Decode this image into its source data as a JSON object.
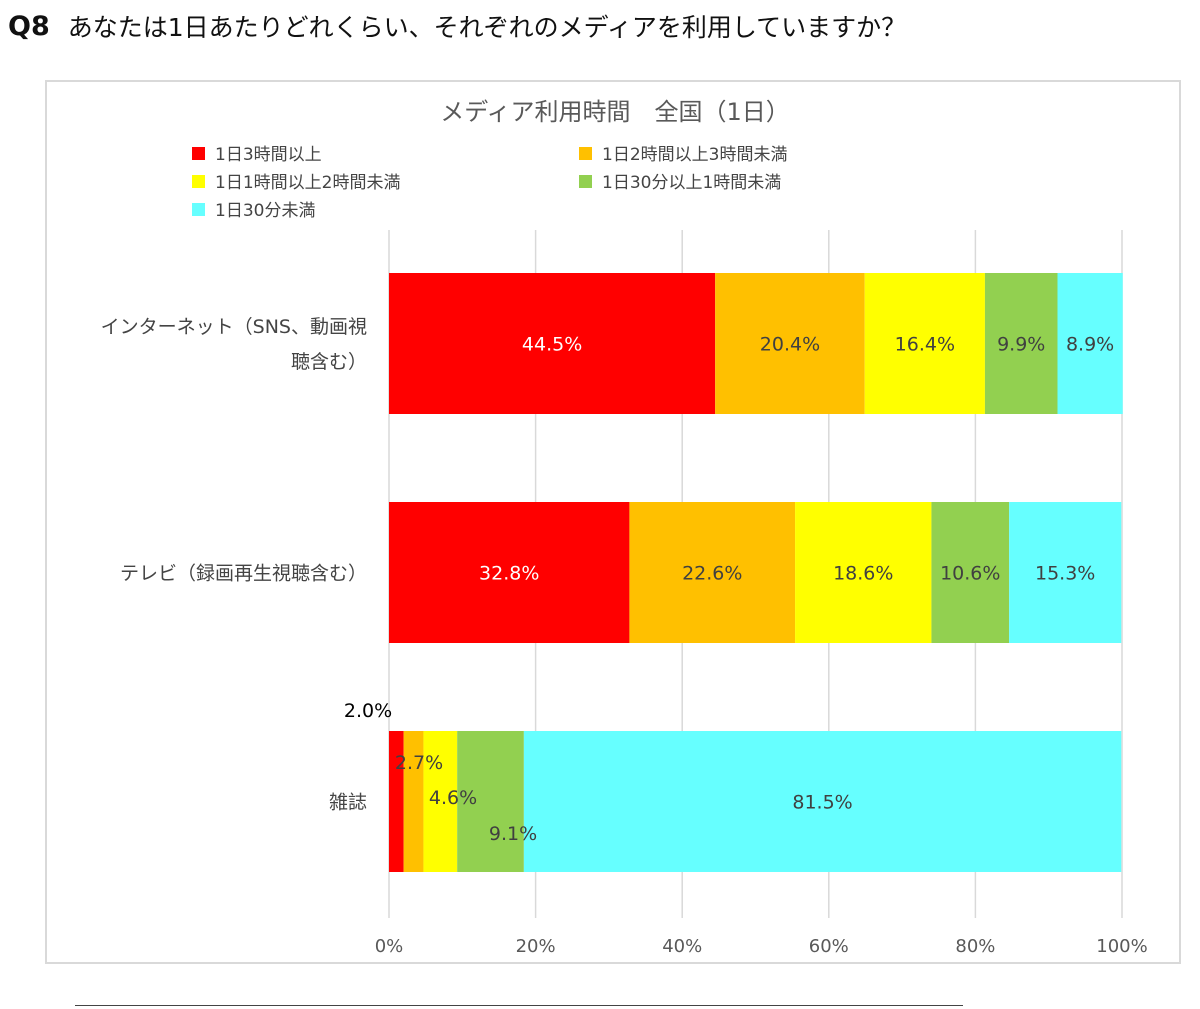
{
  "question": {
    "label": "Q8",
    "text": "あなたは1日あたりどれくらい、それぞれのメディアを利用していますか？"
  },
  "chart_data": {
    "type": "bar",
    "orientation": "horizontal",
    "stacked": "percent",
    "title": "メディア利用時間　全国（1日）",
    "categories": [
      [
        "インターネット（SNS、動画視",
        "聴含む）"
      ],
      [
        "テレビ（録画再生視聴含む）"
      ],
      [
        "雑誌"
      ]
    ],
    "series": [
      {
        "name": "1日3時間以上",
        "color": "#ff0000",
        "label_color": "#ffffff",
        "values": [
          44.5,
          32.8,
          2.0
        ],
        "labels": [
          "44.5%",
          "32.8%",
          "2.0%"
        ]
      },
      {
        "name": "1日2時間以上3時間未満",
        "color": "#ffc000",
        "label_color": "#404040",
        "values": [
          20.4,
          22.6,
          2.7
        ],
        "labels": [
          "20.4%",
          "22.6%",
          "2.7%"
        ]
      },
      {
        "name": "1日1時間以上2時間未満",
        "color": "#ffff00",
        "label_color": "#404040",
        "values": [
          16.4,
          18.6,
          4.6
        ],
        "labels": [
          "16.4%",
          "18.6%",
          "4.6%"
        ]
      },
      {
        "name": "1日30分以上1時間未満",
        "color": "#92d050",
        "label_color": "#404040",
        "values": [
          9.9,
          10.6,
          9.1
        ],
        "labels": [
          "9.9%",
          "10.6%",
          "9.1%"
        ]
      },
      {
        "name": "1日30分未満",
        "color": "#66ffff",
        "label_color": "#404040",
        "values": [
          8.9,
          15.3,
          81.5
        ],
        "labels": [
          "8.9%",
          "15.3%",
          "81.5%"
        ]
      }
    ],
    "xlim": [
      0,
      100
    ],
    "xticks": [
      "0%",
      "20%",
      "40%",
      "60%",
      "80%",
      "100%"
    ],
    "grid": true,
    "legend_position": "top"
  }
}
